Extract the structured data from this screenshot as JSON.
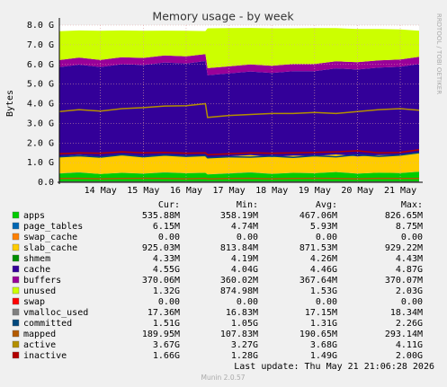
{
  "chart_data": {
    "type": "area",
    "title": "Memory usage - by week",
    "ylabel": "Bytes",
    "side_text": "RRDTOOL / TOBI OETIKER",
    "footer": "Last update: Thu May 21 21:06:28 2026",
    "version": "Munin 2.0.57",
    "stat_headers": [
      "Cur:",
      "Min:",
      "Avg:",
      "Max:"
    ],
    "grid": true,
    "xlim": [
      13.04,
      21.44
    ],
    "xticks": [
      {
        "value": 14,
        "label": "14 May"
      },
      {
        "value": 15,
        "label": "15 May"
      },
      {
        "value": 16,
        "label": "16 May"
      },
      {
        "value": 17,
        "label": "17 May"
      },
      {
        "value": 18,
        "label": "18 May"
      },
      {
        "value": 19,
        "label": "19 May"
      },
      {
        "value": 20,
        "label": "20 May"
      },
      {
        "value": 21,
        "label": "21 May"
      }
    ],
    "ylim": [
      0,
      8
    ],
    "yticks": [
      {
        "value": 0,
        "label": "0.0"
      },
      {
        "value": 1,
        "label": "1.0 G"
      },
      {
        "value": 2,
        "label": "2.0 G"
      },
      {
        "value": 3,
        "label": "3.0 G"
      },
      {
        "value": 4,
        "label": "4.0 G"
      },
      {
        "value": 5,
        "label": "5.0 G"
      },
      {
        "value": 6,
        "label": "6.0 G"
      },
      {
        "value": 7,
        "label": "7.0 G"
      },
      {
        "value": 8,
        "label": "8.0 G"
      }
    ],
    "x": [
      13.04,
      13.5,
      14,
      14.5,
      15,
      15.5,
      16,
      16.45,
      16.5,
      17,
      17.5,
      18,
      18.5,
      19,
      19.5,
      20,
      20.5,
      21,
      21.44
    ],
    "series": [
      {
        "name": "apps",
        "color": "#00cc00",
        "style": "stack",
        "stats": [
          "535.88M",
          "358.19M",
          "467.06M",
          "826.65M"
        ],
        "values": [
          0.45,
          0.5,
          0.42,
          0.48,
          0.44,
          0.5,
          0.46,
          0.48,
          0.4,
          0.45,
          0.5,
          0.43,
          0.48,
          0.46,
          0.52,
          0.44,
          0.49,
          0.47,
          0.54
        ]
      },
      {
        "name": "page_tables",
        "color": "#0066b3",
        "style": "stack",
        "stats": [
          "6.15M",
          "4.74M",
          "5.93M",
          "8.75M"
        ],
        "values": [
          0.006,
          0.006,
          0.006,
          0.006,
          0.006,
          0.006,
          0.006,
          0.006,
          0.006,
          0.006,
          0.006,
          0.006,
          0.006,
          0.006,
          0.006,
          0.006,
          0.006,
          0.006,
          0.006
        ]
      },
      {
        "name": "swap_cache",
        "color": "#ff8000",
        "style": "stack",
        "stats": [
          "0.00",
          "0.00",
          "0.00",
          "0.00"
        ],
        "values": [
          0,
          0,
          0,
          0,
          0,
          0,
          0,
          0,
          0,
          0,
          0,
          0,
          0,
          0,
          0,
          0,
          0,
          0,
          0
        ]
      },
      {
        "name": "slab_cache",
        "color": "#ffcc00",
        "style": "stack",
        "stats": [
          "925.03M",
          "813.84M",
          "871.53M",
          "929.22M"
        ],
        "values": [
          0.85,
          0.88,
          0.86,
          0.9,
          0.87,
          0.89,
          0.86,
          0.88,
          0.84,
          0.86,
          0.88,
          0.85,
          0.87,
          0.86,
          0.89,
          0.87,
          0.88,
          0.9,
          0.92
        ]
      },
      {
        "name": "shmem",
        "color": "#008f00",
        "style": "stack",
        "stats": [
          "4.33M",
          "4.19M",
          "4.26M",
          "4.43M"
        ],
        "values": [
          0.004,
          0.004,
          0.004,
          0.004,
          0.004,
          0.004,
          0.004,
          0.004,
          0.004,
          0.004,
          0.004,
          0.004,
          0.004,
          0.004,
          0.004,
          0.004,
          0.004,
          0.004,
          0.004
        ]
      },
      {
        "name": "cache",
        "color": "#330099",
        "style": "stack",
        "stats": [
          "4.55G",
          "4.04G",
          "4.46G",
          "4.87G"
        ],
        "values": [
          4.55,
          4.6,
          4.58,
          4.62,
          4.65,
          4.7,
          4.72,
          4.8,
          4.2,
          4.22,
          4.25,
          4.28,
          4.3,
          4.33,
          4.38,
          4.42,
          4.46,
          4.5,
          4.55
        ]
      },
      {
        "name": "buffers",
        "color": "#990099",
        "style": "stack",
        "stats": [
          "370.06M",
          "360.02M",
          "367.64M",
          "370.07M"
        ],
        "values": [
          0.36,
          0.36,
          0.36,
          0.36,
          0.36,
          0.36,
          0.36,
          0.36,
          0.36,
          0.36,
          0.36,
          0.36,
          0.36,
          0.36,
          0.36,
          0.37,
          0.37,
          0.37,
          0.37
        ]
      },
      {
        "name": "unused",
        "color": "#ccff00",
        "style": "stack",
        "stats": [
          "1.32G",
          "874.98M",
          "1.53G",
          "2.03G"
        ],
        "values": [
          1.47,
          1.38,
          1.48,
          1.36,
          1.38,
          1.26,
          1.3,
          1.17,
          2.03,
          1.95,
          1.86,
          1.91,
          1.82,
          1.83,
          1.69,
          1.7,
          1.6,
          1.53,
          1.32
        ]
      },
      {
        "name": "swap",
        "color": "#ff0000",
        "style": "stack",
        "stats": [
          "0.00",
          "0.00",
          "0.00",
          "0.00"
        ],
        "values": [
          0,
          0,
          0,
          0,
          0,
          0,
          0,
          0,
          0,
          0,
          0,
          0,
          0,
          0,
          0,
          0,
          0,
          0,
          0
        ]
      },
      {
        "name": "vmalloc_used",
        "color": "#808080",
        "style": "line",
        "stats": [
          "17.36M",
          "16.83M",
          "17.15M",
          "18.34M"
        ],
        "values": [
          0.017,
          0.017,
          0.017,
          0.017,
          0.017,
          0.017,
          0.017,
          0.017,
          0.017,
          0.017,
          0.017,
          0.017,
          0.017,
          0.017,
          0.017,
          0.017,
          0.017,
          0.017,
          0.017
        ]
      },
      {
        "name": "committed",
        "color": "#00487d",
        "style": "line",
        "stats": [
          "1.51G",
          "1.05G",
          "1.31G",
          "2.26G"
        ],
        "values": [
          1.3,
          1.35,
          1.28,
          1.4,
          1.3,
          1.38,
          1.32,
          1.36,
          1.25,
          1.3,
          1.28,
          1.33,
          1.27,
          1.35,
          1.3,
          1.4,
          1.32,
          1.38,
          1.51
        ]
      },
      {
        "name": "mapped",
        "color": "#b35a00",
        "style": "line",
        "stats": [
          "189.95M",
          "107.83M",
          "190.65M",
          "293.14M"
        ],
        "values": [
          0.19,
          0.2,
          0.18,
          0.19,
          0.2,
          0.19,
          0.18,
          0.2,
          0.17,
          0.19,
          0.2,
          0.18,
          0.19,
          0.2,
          0.19,
          0.18,
          0.2,
          0.19,
          0.19
        ]
      },
      {
        "name": "active",
        "color": "#b38f00",
        "style": "line",
        "stats": [
          "3.67G",
          "3.27G",
          "3.68G",
          "4.11G"
        ],
        "values": [
          3.6,
          3.7,
          3.62,
          3.75,
          3.8,
          3.88,
          3.9,
          4.0,
          3.3,
          3.4,
          3.45,
          3.5,
          3.5,
          3.55,
          3.5,
          3.6,
          3.7,
          3.75,
          3.67
        ]
      },
      {
        "name": "inactive",
        "color": "#b30000",
        "style": "line",
        "stats": [
          "1.66G",
          "1.28G",
          "1.49G",
          "2.00G"
        ],
        "values": [
          1.45,
          1.5,
          1.48,
          1.55,
          1.5,
          1.52,
          1.48,
          1.5,
          1.4,
          1.45,
          1.5,
          1.48,
          1.5,
          1.52,
          1.55,
          1.6,
          1.5,
          1.52,
          1.66
        ]
      }
    ]
  }
}
